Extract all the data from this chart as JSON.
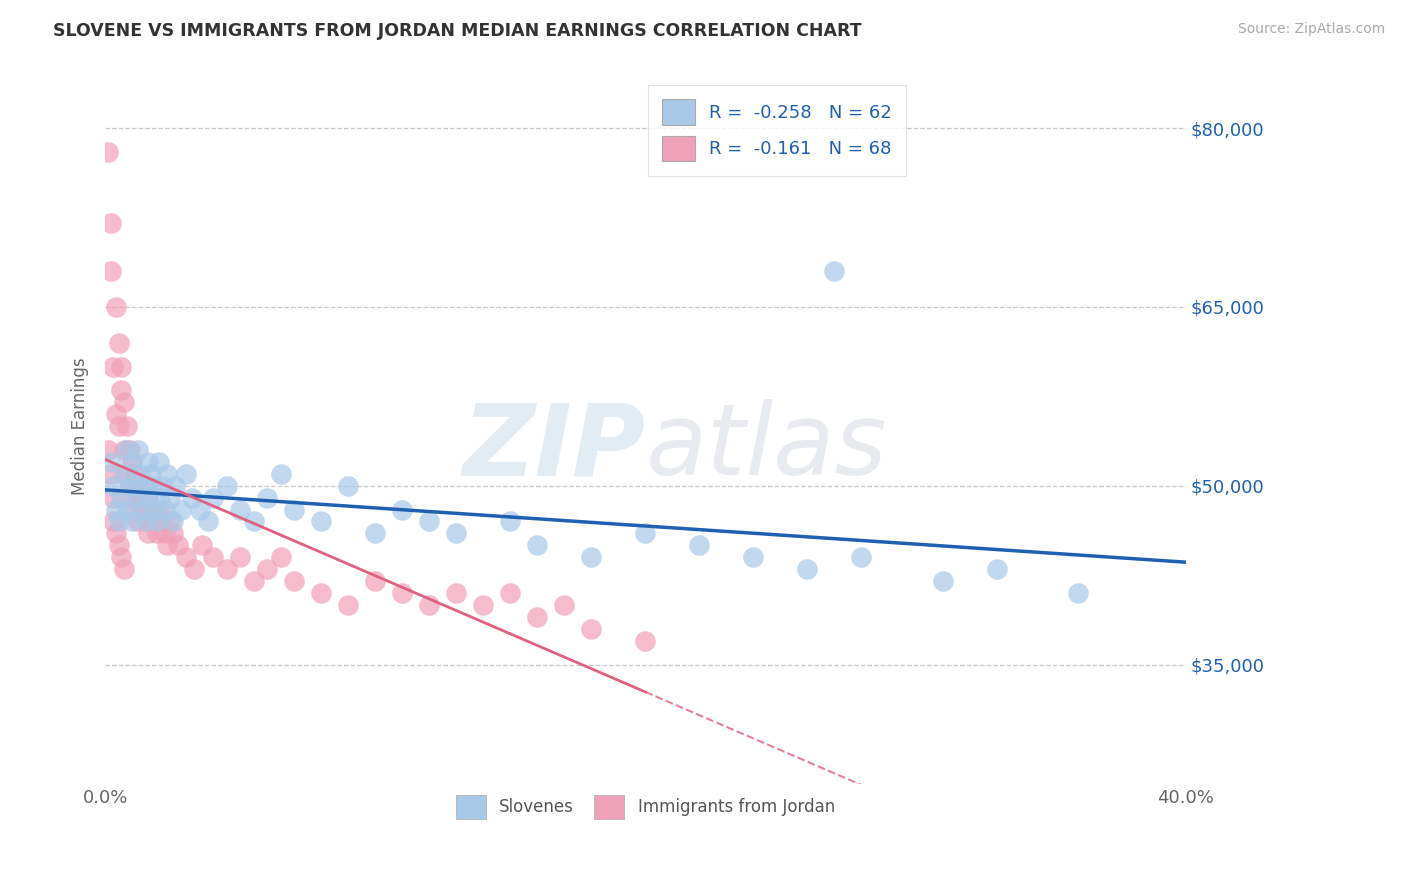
{
  "title": "SLOVENE VS IMMIGRANTS FROM JORDAN MEDIAN EARNINGS CORRELATION CHART",
  "source": "Source: ZipAtlas.com",
  "ylabel": "Median Earnings",
  "xlim": [
    0.0,
    0.4
  ],
  "ylim": [
    25000,
    85000
  ],
  "yticks": [
    35000,
    50000,
    65000,
    80000
  ],
  "ytick_labels": [
    "$35,000",
    "$50,000",
    "$65,000",
    "$80,000"
  ],
  "xticks": [
    0.0,
    0.05,
    0.1,
    0.15,
    0.2,
    0.25,
    0.3,
    0.35,
    0.4
  ],
  "blue_R": -0.258,
  "blue_N": 62,
  "pink_R": -0.161,
  "pink_N": 68,
  "blue_scatter_color": "#a8c8e8",
  "pink_scatter_color": "#f0a0b8",
  "trend_blue_color": "#2060b0",
  "trend_pink_color": "#e06080",
  "watermark_zip": "ZIP",
  "watermark_atlas": "atlas",
  "background_color": "#ffffff",
  "legend_text_color": "#2060b0",
  "blue_x": [
    0.002,
    0.003,
    0.004,
    0.005,
    0.006,
    0.007,
    0.008,
    0.008,
    0.009,
    0.01,
    0.01,
    0.011,
    0.012,
    0.012,
    0.013,
    0.014,
    0.015,
    0.015,
    0.016,
    0.016,
    0.017,
    0.018,
    0.018,
    0.019,
    0.02,
    0.02,
    0.021,
    0.022,
    0.023,
    0.024,
    0.025,
    0.026,
    0.028,
    0.03,
    0.032,
    0.035,
    0.038,
    0.04,
    0.045,
    0.05,
    0.055,
    0.06,
    0.065,
    0.07,
    0.08,
    0.09,
    0.1,
    0.11,
    0.12,
    0.13,
    0.15,
    0.16,
    0.18,
    0.2,
    0.22,
    0.24,
    0.26,
    0.28,
    0.31,
    0.33,
    0.36,
    0.27
  ],
  "blue_y": [
    52000,
    50000,
    48000,
    47000,
    49000,
    51000,
    48000,
    53000,
    50000,
    52000,
    47000,
    50000,
    49000,
    53000,
    51000,
    48000,
    50000,
    47000,
    52000,
    49000,
    51000,
    48000,
    50000,
    47000,
    49000,
    52000,
    50000,
    48000,
    51000,
    49000,
    47000,
    50000,
    48000,
    51000,
    49000,
    48000,
    47000,
    49000,
    50000,
    48000,
    47000,
    49000,
    51000,
    48000,
    47000,
    50000,
    46000,
    48000,
    47000,
    46000,
    47000,
    45000,
    44000,
    46000,
    45000,
    44000,
    43000,
    44000,
    42000,
    43000,
    41000,
    68000
  ],
  "pink_x": [
    0.001,
    0.002,
    0.002,
    0.003,
    0.004,
    0.004,
    0.005,
    0.005,
    0.006,
    0.006,
    0.007,
    0.007,
    0.008,
    0.008,
    0.009,
    0.009,
    0.01,
    0.01,
    0.011,
    0.011,
    0.012,
    0.012,
    0.013,
    0.014,
    0.015,
    0.015,
    0.016,
    0.016,
    0.017,
    0.018,
    0.019,
    0.02,
    0.021,
    0.022,
    0.023,
    0.024,
    0.025,
    0.027,
    0.03,
    0.033,
    0.036,
    0.04,
    0.045,
    0.05,
    0.055,
    0.06,
    0.065,
    0.07,
    0.08,
    0.09,
    0.1,
    0.11,
    0.12,
    0.13,
    0.14,
    0.15,
    0.16,
    0.17,
    0.18,
    0.2,
    0.001,
    0.002,
    0.003,
    0.003,
    0.004,
    0.005,
    0.006,
    0.007
  ],
  "pink_y": [
    78000,
    72000,
    68000,
    60000,
    65000,
    56000,
    62000,
    55000,
    60000,
    58000,
    57000,
    53000,
    55000,
    51000,
    53000,
    50000,
    52000,
    49000,
    51000,
    48000,
    50000,
    47000,
    49000,
    48000,
    50000,
    47000,
    49000,
    46000,
    48000,
    47000,
    46000,
    48000,
    47000,
    46000,
    45000,
    47000,
    46000,
    45000,
    44000,
    43000,
    45000,
    44000,
    43000,
    44000,
    42000,
    43000,
    44000,
    42000,
    41000,
    40000,
    42000,
    41000,
    40000,
    41000,
    40000,
    41000,
    39000,
    40000,
    38000,
    37000,
    53000,
    51000,
    49000,
    47000,
    46000,
    45000,
    44000,
    43000
  ]
}
